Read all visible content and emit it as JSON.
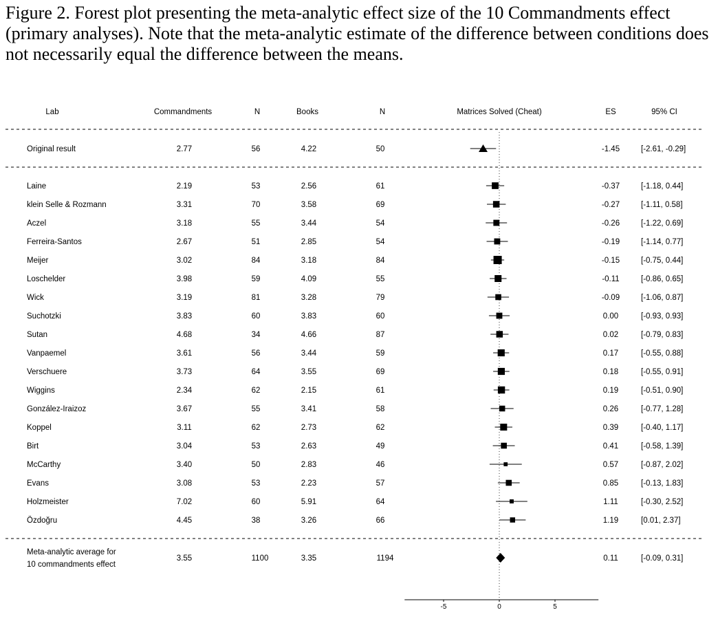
{
  "caption": "Figure 2. Forest plot presenting the meta-analytic effect size of the 10 Commandments effect (primary analyses). Note that the meta-analytic estimate of the difference between conditions does not necessarily equal the difference between the means.",
  "chart_data": {
    "type": "forest",
    "columns": {
      "lab": "Lab",
      "commandments": "Commandments",
      "n1": "N",
      "books": "Books",
      "n2": "N",
      "plot": "Matrices Solved (Cheat)",
      "es": "ES",
      "ci": "95% CI"
    },
    "original": {
      "lab": "Original result",
      "commandments": "2.77",
      "n1": "56",
      "books": "4.22",
      "n2": "50",
      "es_text": "-1.45",
      "ci_text": "[-2.61, -0.29]",
      "es": -1.45,
      "lo": -2.61,
      "hi": -0.29
    },
    "rows": [
      {
        "lab": "Laine",
        "commandments": "2.19",
        "n1": "53",
        "books": "2.56",
        "n2": "61",
        "es_text": "-0.37",
        "ci_text": "[-1.18, 0.44]",
        "es": -0.37,
        "lo": -1.18,
        "hi": 0.44,
        "weight": 0.75
      },
      {
        "lab": "klein Selle & Rozmann",
        "commandments": "3.31",
        "n1": "70",
        "books": "3.58",
        "n2": "69",
        "es_text": "-0.27",
        "ci_text": "[-1.11, 0.58]",
        "es": -0.27,
        "lo": -1.11,
        "hi": 0.58,
        "weight": 0.72
      },
      {
        "lab": "Aczel",
        "commandments": "3.18",
        "n1": "55",
        "books": "3.44",
        "n2": "54",
        "es_text": "-0.26",
        "ci_text": "[-1.22, 0.69]",
        "es": -0.26,
        "lo": -1.22,
        "hi": 0.69,
        "weight": 0.65
      },
      {
        "lab": "Ferreira-Santos",
        "commandments": "2.67",
        "n1": "51",
        "books": "2.85",
        "n2": "54",
        "es_text": "-0.19",
        "ci_text": "[-1.14, 0.77]",
        "es": -0.19,
        "lo": -1.14,
        "hi": 0.77,
        "weight": 0.65
      },
      {
        "lab": "Meijer",
        "commandments": "3.02",
        "n1": "84",
        "books": "3.18",
        "n2": "84",
        "es_text": "-0.15",
        "ci_text": "[-0.75, 0.44]",
        "es": -0.15,
        "lo": -0.75,
        "hi": 0.44,
        "weight": 1.0
      },
      {
        "lab": "Loschelder",
        "commandments": "3.98",
        "n1": "59",
        "books": "4.09",
        "n2": "55",
        "es_text": "-0.11",
        "ci_text": "[-0.86, 0.65]",
        "es": -0.11,
        "lo": -0.86,
        "hi": 0.65,
        "weight": 0.78
      },
      {
        "lab": "Wick",
        "commandments": "3.19",
        "n1": "81",
        "books": "3.28",
        "n2": "79",
        "es_text": "-0.09",
        "ci_text": "[-1.06, 0.87]",
        "es": -0.09,
        "lo": -1.06,
        "hi": 0.87,
        "weight": 0.62
      },
      {
        "lab": "Suchotzki",
        "commandments": "3.83",
        "n1": "60",
        "books": "3.83",
        "n2": "60",
        "es_text": "0.00",
        "ci_text": "[-0.93, 0.93]",
        "es": 0.0,
        "lo": -0.93,
        "hi": 0.93,
        "weight": 0.65
      },
      {
        "lab": "Sutan",
        "commandments": "4.68",
        "n1": "34",
        "books": "4.66",
        "n2": "87",
        "es_text": "0.02",
        "ci_text": "[-0.79, 0.83]",
        "es": 0.02,
        "lo": -0.79,
        "hi": 0.83,
        "weight": 0.72
      },
      {
        "lab": "Vanpaemel",
        "commandments": "3.61",
        "n1": "56",
        "books": "3.44",
        "n2": "59",
        "es_text": "0.17",
        "ci_text": "[-0.55, 0.88]",
        "es": 0.17,
        "lo": -0.55,
        "hi": 0.88,
        "weight": 0.8
      },
      {
        "lab": "Verschuere",
        "commandments": "3.73",
        "n1": "64",
        "books": "3.55",
        "n2": "69",
        "es_text": "0.18",
        "ci_text": "[-0.55, 0.91]",
        "es": 0.18,
        "lo": -0.55,
        "hi": 0.91,
        "weight": 0.8
      },
      {
        "lab": "Wiggins",
        "commandments": "2.34",
        "n1": "62",
        "books": "2.15",
        "n2": "61",
        "es_text": "0.19",
        "ci_text": "[-0.51, 0.90]",
        "es": 0.19,
        "lo": -0.51,
        "hi": 0.9,
        "weight": 0.82
      },
      {
        "lab": "González-Iraizoz",
        "commandments": "3.67",
        "n1": "55",
        "books": "3.41",
        "n2": "58",
        "es_text": "0.26",
        "ci_text": "[-0.77, 1.28]",
        "es": 0.26,
        "lo": -0.77,
        "hi": 1.28,
        "weight": 0.6
      },
      {
        "lab": "Koppel",
        "commandments": "3.11",
        "n1": "62",
        "books": "2.73",
        "n2": "62",
        "es_text": "0.39",
        "ci_text": "[-0.40, 1.17]",
        "es": 0.39,
        "lo": -0.4,
        "hi": 1.17,
        "weight": 0.78
      },
      {
        "lab": "Birt",
        "commandments": "3.04",
        "n1": "53",
        "books": "2.63",
        "n2": "49",
        "es_text": "0.41",
        "ci_text": "[-0.58, 1.39]",
        "es": 0.41,
        "lo": -0.58,
        "hi": 1.39,
        "weight": 0.62
      },
      {
        "lab": "McCarthy",
        "commandments": "3.40",
        "n1": "50",
        "books": "2.83",
        "n2": "46",
        "es_text": "0.57",
        "ci_text": "[-0.87, 2.02]",
        "es": 0.57,
        "lo": -0.87,
        "hi": 2.02,
        "weight": 0.3
      },
      {
        "lab": "Evans",
        "commandments": "3.08",
        "n1": "53",
        "books": "2.23",
        "n2": "57",
        "es_text": "0.85",
        "ci_text": "[-0.13, 1.83]",
        "es": 0.85,
        "lo": -0.13,
        "hi": 1.83,
        "weight": 0.62
      },
      {
        "lab": "Holzmeister",
        "commandments": "7.02",
        "n1": "60",
        "books": "5.91",
        "n2": "64",
        "es_text": "1.11",
        "ci_text": "[-0.30, 2.52]",
        "es": 1.11,
        "lo": -0.3,
        "hi": 2.52,
        "weight": 0.32
      },
      {
        "lab": "Özdoğru",
        "commandments": "4.45",
        "n1": "38",
        "books": "3.26",
        "n2": "66",
        "es_text": "1.19",
        "ci_text": "[0.01, 2.37]",
        "es": 1.19,
        "lo": 0.01,
        "hi": 2.37,
        "weight": 0.5
      }
    ],
    "meta": {
      "lab_line1": "Meta-analytic average for",
      "lab_line2": "10 commandments effect",
      "commandments": "3.55",
      "n1": "1100",
      "books": "3.35",
      "n2": "1194",
      "es_text": "0.11",
      "ci_text": "[-0.09, 0.31]",
      "es": 0.11,
      "lo": -0.09,
      "hi": 0.31
    },
    "x_axis": {
      "ticks": [
        -5,
        0,
        5
      ],
      "tick_labels": [
        "-5",
        "0",
        "5"
      ],
      "xlim": [
        -8.5,
        8.9
      ],
      "reference_line": 0
    }
  }
}
